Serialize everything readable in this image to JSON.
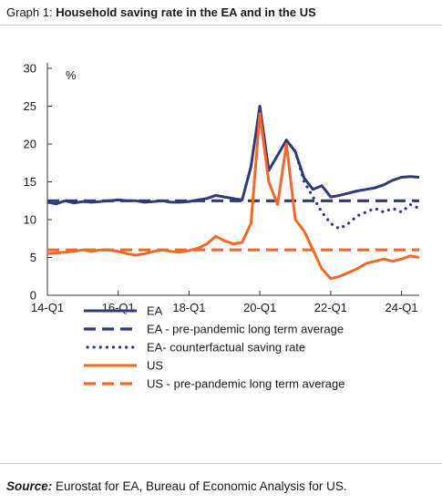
{
  "title": {
    "prefix": "Graph 1: ",
    "main": "Household saving rate in the EA and in the US"
  },
  "source": {
    "label": "Source:",
    "text": " Eurostat for EA, Bureau of Economic Analysis for US."
  },
  "colors": {
    "ea": "#2f3a78",
    "ea_counterfactual": "#2f3a78",
    "us": "#f0682a",
    "axis": "#333333"
  },
  "chart_data": {
    "type": "line",
    "ylabel": "%",
    "ylim": [
      0,
      30
    ],
    "y_ticks": [
      "0",
      "5",
      "10",
      "15",
      "20",
      "25",
      "30"
    ],
    "x_tick_labels": [
      "14-Q1",
      "16-Q1",
      "18-Q1",
      "20-Q1",
      "22-Q1",
      "24-Q1"
    ],
    "x_tick_positions": [
      0,
      8,
      16,
      24,
      32,
      40
    ],
    "x_range": [
      0,
      42
    ],
    "legend_position": "bottom",
    "series": [
      {
        "name": "EA",
        "style": "solid",
        "color": "#2f3a78",
        "x": [
          0,
          1,
          2,
          3,
          4,
          5,
          6,
          7,
          8,
          9,
          10,
          11,
          12,
          13,
          14,
          15,
          16,
          17,
          18,
          19,
          20,
          21,
          22,
          23,
          24,
          25,
          26,
          27,
          28,
          29,
          30,
          31,
          32,
          33,
          34,
          35,
          36,
          37,
          38,
          39,
          40,
          41,
          42
        ],
        "values": [
          12.3,
          12.1,
          12.5,
          12.2,
          12.4,
          12.3,
          12.4,
          12.5,
          12.6,
          12.5,
          12.5,
          12.3,
          12.4,
          12.5,
          12.3,
          12.3,
          12.4,
          12.6,
          12.8,
          13.2,
          13.0,
          12.8,
          12.6,
          17.0,
          25.0,
          16.5,
          18.5,
          20.5,
          19.0,
          15.5,
          14.0,
          14.5,
          13.0,
          13.2,
          13.5,
          13.8,
          14.0,
          14.2,
          14.6,
          15.2,
          15.6,
          15.7,
          15.6
        ]
      },
      {
        "name": "EA - pre-pandemic long term average",
        "style": "dashed",
        "color": "#2f3a78",
        "x": [
          0,
          42
        ],
        "values": [
          12.5,
          12.5
        ]
      },
      {
        "name": "EA- counterfactual saving rate",
        "style": "dotted",
        "color": "#2f3a78",
        "x": [
          27,
          28,
          29,
          30,
          31,
          32,
          33,
          34,
          35,
          36,
          37,
          38,
          39,
          40,
          41,
          42
        ],
        "values": [
          20.5,
          19.0,
          15.0,
          13.0,
          11.0,
          9.5,
          8.8,
          9.5,
          10.5,
          11.0,
          11.5,
          11.0,
          11.5,
          11.0,
          12.0,
          11.5
        ]
      },
      {
        "name": "US",
        "style": "solid",
        "color": "#f0682a",
        "x": [
          0,
          1,
          2,
          3,
          4,
          5,
          6,
          7,
          8,
          9,
          10,
          11,
          12,
          13,
          14,
          15,
          16,
          17,
          18,
          19,
          20,
          21,
          22,
          23,
          24,
          25,
          26,
          27,
          28,
          29,
          30,
          31,
          32,
          33,
          34,
          35,
          36,
          37,
          38,
          39,
          40,
          41,
          42
        ],
        "values": [
          5.5,
          5.6,
          5.7,
          5.8,
          6.0,
          5.8,
          6.0,
          6.0,
          5.8,
          5.5,
          5.3,
          5.5,
          5.8,
          6.0,
          5.8,
          5.7,
          5.9,
          6.2,
          6.8,
          7.8,
          7.2,
          6.8,
          7.0,
          9.5,
          24.0,
          15.0,
          12.0,
          20.0,
          10.0,
          8.5,
          6.0,
          3.5,
          2.2,
          2.5,
          3.0,
          3.5,
          4.2,
          4.5,
          4.8,
          4.5,
          4.8,
          5.2,
          5.0
        ]
      },
      {
        "name": "US -  pre-pandemic long term average",
        "style": "dashed",
        "color": "#f0682a",
        "x": [
          0,
          42
        ],
        "values": [
          6.0,
          6.0
        ]
      }
    ]
  }
}
